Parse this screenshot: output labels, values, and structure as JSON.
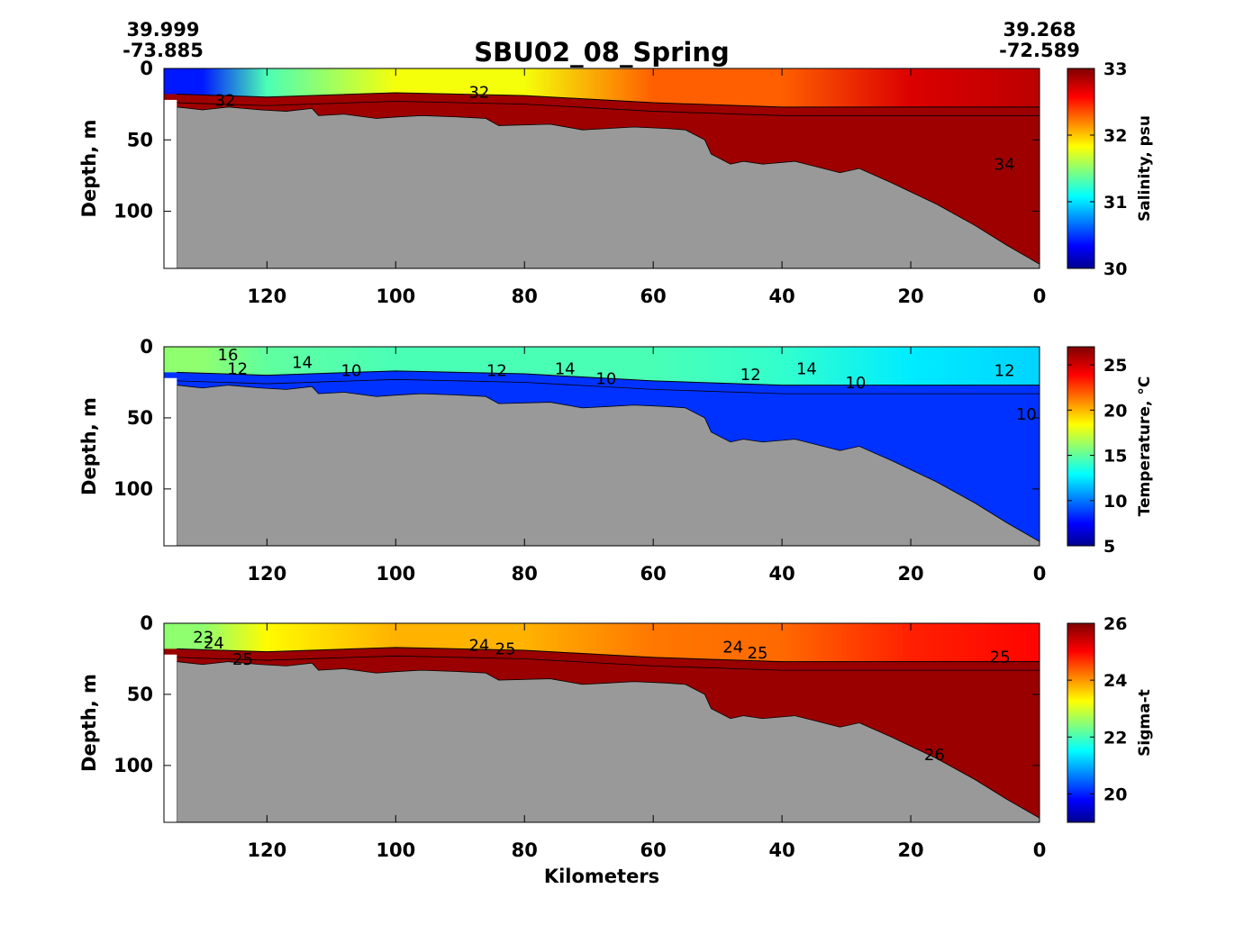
{
  "figure": {
    "title": "SBU02_08_Spring",
    "left_coord": {
      "lat": "39.999",
      "lon": "-73.885"
    },
    "right_coord": {
      "lat": "39.268",
      "lon": "-72.589"
    },
    "xlabel": "Kilometers",
    "colormap": "jet",
    "bathymetry_color": "#999999"
  },
  "chart_data": [
    {
      "type": "heatmap",
      "title": "",
      "variable": "salinity",
      "xlabel": "",
      "ylabel": "Depth, m",
      "xlim": [
        136,
        0
      ],
      "ylim": [
        140,
        0
      ],
      "xticks": [
        120,
        100,
        80,
        60,
        40,
        20,
        0
      ],
      "yticks": [
        0,
        50,
        100
      ],
      "colorbar": {
        "label": "Salinity, psu",
        "min": 30,
        "max": 33,
        "ticks": [
          30,
          31,
          32,
          33
        ]
      },
      "contour_labels": [
        "32",
        "32",
        "34"
      ],
      "surface_layer": [
        {
          "x": 130,
          "value": 30.4
        },
        {
          "x": 120,
          "value": 31.3
        },
        {
          "x": 100,
          "value": 31.8
        },
        {
          "x": 80,
          "value": 31.8
        },
        {
          "x": 60,
          "value": 32.3
        },
        {
          "x": 40,
          "value": 32.3
        },
        {
          "x": 20,
          "value": 32.7
        },
        {
          "x": 0,
          "value": 32.8
        }
      ],
      "bottom_layer_value": 32.9
    },
    {
      "type": "heatmap",
      "title": "",
      "variable": "temperature",
      "xlabel": "",
      "ylabel": "Depth, m",
      "xlim": [
        136,
        0
      ],
      "ylim": [
        140,
        0
      ],
      "xticks": [
        120,
        100,
        80,
        60,
        40,
        20,
        0
      ],
      "yticks": [
        0,
        50,
        100
      ],
      "colorbar": {
        "label": "Temperature, °C",
        "min": 5,
        "max": 27,
        "ticks": [
          5,
          10,
          15,
          20,
          25
        ]
      },
      "contour_labels": [
        "16",
        "12",
        "14",
        "10",
        "12",
        "14",
        "10",
        "12",
        "14",
        "10",
        "12",
        "10"
      ],
      "surface_layer": [
        {
          "x": 130,
          "value": 16
        },
        {
          "x": 120,
          "value": 15
        },
        {
          "x": 100,
          "value": 14.5
        },
        {
          "x": 80,
          "value": 14.5
        },
        {
          "x": 60,
          "value": 14.5
        },
        {
          "x": 40,
          "value": 14
        },
        {
          "x": 20,
          "value": 12.5
        },
        {
          "x": 0,
          "value": 12
        }
      ],
      "bottom_layer_value": 8.5
    },
    {
      "type": "heatmap",
      "title": "",
      "variable": "sigma-t",
      "xlabel": "Kilometers",
      "ylabel": "Depth, m",
      "xlim": [
        136,
        0
      ],
      "ylim": [
        140,
        0
      ],
      "xticks": [
        120,
        100,
        80,
        60,
        40,
        20,
        0
      ],
      "yticks": [
        0,
        50,
        100
      ],
      "colorbar": {
        "label": "Sigma-t",
        "min": 19,
        "max": 26,
        "ticks": [
          20,
          22,
          24,
          26
        ]
      },
      "contour_labels": [
        "23",
        "24",
        "25",
        "24",
        "25",
        "24",
        "25",
        "25",
        "26"
      ],
      "surface_layer": [
        {
          "x": 130,
          "value": 22.5
        },
        {
          "x": 120,
          "value": 23.3
        },
        {
          "x": 100,
          "value": 23.8
        },
        {
          "x": 80,
          "value": 23.8
        },
        {
          "x": 60,
          "value": 24.2
        },
        {
          "x": 40,
          "value": 24.3
        },
        {
          "x": 20,
          "value": 24.8
        },
        {
          "x": 0,
          "value": 25.0
        }
      ],
      "bottom_layer_value": 25.8
    }
  ],
  "bathymetry": {
    "units": "m",
    "points": [
      {
        "x": 134,
        "depth": 27
      },
      {
        "x": 132,
        "depth": 28
      },
      {
        "x": 130,
        "depth": 29
      },
      {
        "x": 126,
        "depth": 27
      },
      {
        "x": 121,
        "depth": 29
      },
      {
        "x": 117,
        "depth": 30
      },
      {
        "x": 113,
        "depth": 28
      },
      {
        "x": 112,
        "depth": 33
      },
      {
        "x": 108,
        "depth": 32
      },
      {
        "x": 103,
        "depth": 35
      },
      {
        "x": 100,
        "depth": 34
      },
      {
        "x": 96,
        "depth": 33
      },
      {
        "x": 90,
        "depth": 34
      },
      {
        "x": 86,
        "depth": 35
      },
      {
        "x": 84,
        "depth": 40
      },
      {
        "x": 76,
        "depth": 39
      },
      {
        "x": 71,
        "depth": 43
      },
      {
        "x": 67,
        "depth": 42
      },
      {
        "x": 63,
        "depth": 41
      },
      {
        "x": 58,
        "depth": 42
      },
      {
        "x": 55,
        "depth": 43
      },
      {
        "x": 52,
        "depth": 50
      },
      {
        "x": 51,
        "depth": 60
      },
      {
        "x": 48,
        "depth": 67
      },
      {
        "x": 46,
        "depth": 65
      },
      {
        "x": 43,
        "depth": 67
      },
      {
        "x": 38,
        "depth": 65
      },
      {
        "x": 31,
        "depth": 73
      },
      {
        "x": 28,
        "depth": 70
      },
      {
        "x": 23,
        "depth": 80
      },
      {
        "x": 16,
        "depth": 95
      },
      {
        "x": 10,
        "depth": 110
      },
      {
        "x": 5,
        "depth": 124
      },
      {
        "x": 0,
        "depth": 137
      }
    ]
  }
}
